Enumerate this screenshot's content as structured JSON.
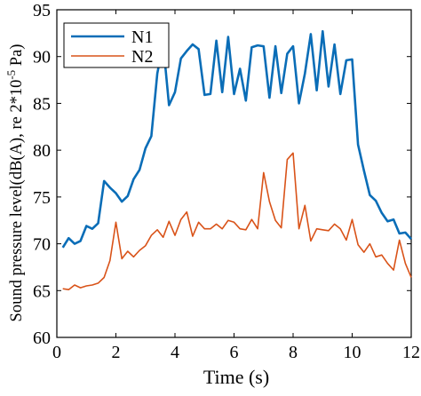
{
  "chart_data": {
    "type": "line",
    "xlabel": "Time (s)",
    "ylabel": "Sound pressure level(dB(A), re 2*10",
    "ylabel_sup": "-5",
    "ylabel_unit": " Pa)",
    "xlim": [
      0,
      12
    ],
    "ylim": [
      60,
      95
    ],
    "xticks": [
      0,
      2,
      4,
      6,
      8,
      10,
      12
    ],
    "yticks": [
      60,
      65,
      70,
      75,
      80,
      85,
      90,
      95
    ],
    "grid": false,
    "legend_position": "top-left",
    "series": [
      {
        "name": "N1",
        "color": "#0a6db7",
        "x": [
          0.2,
          0.4,
          0.6,
          0.8,
          1.0,
          1.2,
          1.4,
          1.6,
          1.8,
          2.0,
          2.2,
          2.4,
          2.6,
          2.8,
          3.0,
          3.2,
          3.4,
          3.6,
          3.8,
          4.0,
          4.2,
          4.4,
          4.6,
          4.8,
          5.0,
          5.2,
          5.4,
          5.6,
          5.8,
          6.0,
          6.2,
          6.4,
          6.6,
          6.8,
          7.0,
          7.2,
          7.4,
          7.6,
          7.8,
          8.0,
          8.2,
          8.4,
          8.6,
          8.8,
          9.0,
          9.2,
          9.4,
          9.6,
          9.8,
          10.0,
          10.2,
          10.4,
          10.6,
          10.8,
          11.0,
          11.2,
          11.4,
          11.6,
          11.8,
          12.0
        ],
        "y": [
          69.6,
          70.6,
          70.0,
          70.3,
          71.9,
          71.6,
          72.2,
          76.7,
          76.0,
          75.4,
          74.5,
          75.1,
          76.9,
          77.9,
          80.2,
          81.5,
          88.2,
          91.4,
          84.8,
          86.2,
          89.8,
          90.6,
          91.3,
          90.8,
          85.9,
          86.0,
          91.7,
          86.2,
          92.1,
          86.0,
          88.7,
          85.3,
          91.0,
          91.2,
          91.1,
          85.6,
          91.1,
          86.1,
          90.3,
          91.1,
          85.0,
          88.2,
          92.4,
          86.4,
          92.7,
          86.8,
          91.3,
          86.0,
          89.6,
          89.7,
          80.6,
          77.8,
          75.2,
          74.6,
          73.3,
          72.4,
          72.6,
          71.1,
          71.2,
          70.5
        ]
      },
      {
        "name": "N2",
        "color": "#d95319",
        "x": [
          0.2,
          0.4,
          0.6,
          0.8,
          1.0,
          1.2,
          1.4,
          1.6,
          1.8,
          2.0,
          2.2,
          2.4,
          2.6,
          2.8,
          3.0,
          3.2,
          3.4,
          3.6,
          3.8,
          4.0,
          4.2,
          4.4,
          4.6,
          4.8,
          5.0,
          5.2,
          5.4,
          5.6,
          5.8,
          6.0,
          6.2,
          6.4,
          6.6,
          6.8,
          7.0,
          7.2,
          7.4,
          7.6,
          7.8,
          8.0,
          8.2,
          8.4,
          8.6,
          8.8,
          9.0,
          9.2,
          9.4,
          9.6,
          9.8,
          10.0,
          10.2,
          10.4,
          10.6,
          10.8,
          11.0,
          11.2,
          11.4,
          11.6,
          11.8,
          12.0
        ],
        "y": [
          65.2,
          65.1,
          65.6,
          65.3,
          65.5,
          65.6,
          65.8,
          66.4,
          68.2,
          72.3,
          68.4,
          69.2,
          68.6,
          69.3,
          69.8,
          70.9,
          71.5,
          70.7,
          72.4,
          70.9,
          72.6,
          73.4,
          70.8,
          72.3,
          71.6,
          71.6,
          72.1,
          71.6,
          72.5,
          72.3,
          71.6,
          71.5,
          72.6,
          71.6,
          77.6,
          74.5,
          72.5,
          71.7,
          79.0,
          79.7,
          71.6,
          74.1,
          70.3,
          71.6,
          71.5,
          71.4,
          72.1,
          71.6,
          70.4,
          72.6,
          69.9,
          69.1,
          70.0,
          68.6,
          68.8,
          67.9,
          67.2,
          70.4,
          67.9,
          66.4
        ]
      }
    ]
  }
}
